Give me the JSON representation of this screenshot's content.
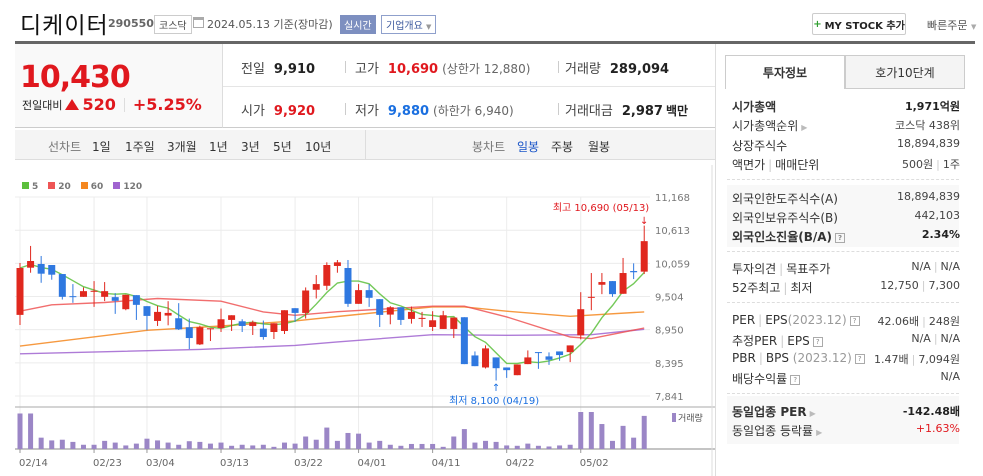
{
  "header": {
    "title": "디케이터",
    "code": "290550",
    "market": "코스닥",
    "date": "2024.05.13 기준(장마감)",
    "realtime": "실시간",
    "company_info": "기업개요",
    "mystock": "MY STOCK 추가",
    "quick_order": "빠른주문"
  },
  "price": {
    "current": "10,430",
    "change_label": "전일대비",
    "change": "520",
    "change_pct": "+5.25%"
  },
  "quote": {
    "prev_label": "전일",
    "prev": "9,910",
    "high_label": "고가",
    "high": "10,690",
    "upper_limit": "(상한가 12,880)",
    "volume_label": "거래량",
    "volume": "289,094",
    "open_label": "시가",
    "open": "9,920",
    "low_label": "저가",
    "low": "9,880",
    "lower_limit": "(하한가 6,940)",
    "amount_label": "거래대금",
    "amount": "2,987",
    "amount_unit": "백만"
  },
  "toolbar": {
    "line_label": "선차트",
    "periods": [
      "1일",
      "1주일",
      "3개월",
      "1년",
      "3년",
      "5년",
      "10년"
    ],
    "candle_label": "봉차트",
    "candle_types": [
      "일봉",
      "주봉",
      "월봉"
    ],
    "active_candle": "일봉"
  },
  "colors": {
    "up": "#e0281e",
    "down": "#2f78e0",
    "ma5": "#5cbf3c",
    "ma20": "#ee5555",
    "ma60": "#f5871f",
    "ma120": "#a064d0",
    "volume": "#9b86c6"
  },
  "chart_data": {
    "type": "candlestick",
    "legend": [
      "5",
      "20",
      "60",
      "120"
    ],
    "y_ticks": [
      11168,
      10613,
      10059,
      9504,
      8950,
      8395,
      7841
    ],
    "ylim": [
      7841,
      11168
    ],
    "x_tick_labels": [
      "02/14",
      "02/23",
      "03/04",
      "03/13",
      "03/22",
      "04/01",
      "04/11",
      "04/22",
      "05/02"
    ],
    "x_tick_index": [
      0,
      7,
      12,
      19,
      26,
      32,
      39,
      46,
      53
    ],
    "annotation_high": "최고 10,690 (05/13)",
    "annotation_low": "최저 8,100 (04/19)",
    "volume_label": "거래량",
    "ohlc": [
      [
        9197,
        10065,
        9029,
        9981
      ],
      [
        9986,
        10350,
        9902,
        10098
      ],
      [
        10048,
        10182,
        9734,
        9886
      ],
      [
        10031,
        10031,
        9785,
        9869
      ],
      [
        9880,
        9880,
        9454,
        9499
      ],
      [
        9510,
        9712,
        9399,
        9494
      ],
      [
        9499,
        9656,
        9499,
        9594
      ],
      [
        9583,
        9762,
        9331,
        9600
      ],
      [
        9499,
        9746,
        9427,
        9594
      ],
      [
        9494,
        9561,
        9214,
        9432
      ],
      [
        9292,
        9533,
        9275,
        9533
      ],
      [
        9527,
        9527,
        9113,
        9365
      ],
      [
        9343,
        9343,
        8939,
        9180
      ],
      [
        9096,
        9348,
        9012,
        9247
      ],
      [
        9186,
        9426,
        9023,
        9230
      ],
      [
        9141,
        9393,
        8945,
        8956
      ],
      [
        8990,
        9135,
        8626,
        8810
      ],
      [
        8704,
        9017,
        8693,
        8990
      ],
      [
        8962,
        8973,
        8760,
        8973
      ],
      [
        8978,
        9303,
        8911,
        9124
      ],
      [
        9113,
        9191,
        8928,
        9191
      ],
      [
        9090,
        9124,
        8911,
        9012
      ],
      [
        9012,
        9102,
        8861,
        9074
      ],
      [
        8967,
        9102,
        8782,
        8827
      ],
      [
        8911,
        9057,
        8794,
        9057
      ],
      [
        8928,
        9275,
        8878,
        9275
      ],
      [
        9309,
        9309,
        9080,
        9230
      ],
      [
        9230,
        9656,
        9135,
        9605
      ],
      [
        9617,
        9863,
        9471,
        9712
      ],
      [
        9684,
        10076,
        9611,
        10031
      ],
      [
        10015,
        10115,
        9902,
        10076
      ],
      [
        9981,
        10115,
        9331,
        9382
      ],
      [
        9382,
        9712,
        9382,
        9611
      ],
      [
        9611,
        9712,
        9331,
        9483
      ],
      [
        9460,
        9460,
        8995,
        9197
      ],
      [
        9202,
        9343,
        9040,
        9325
      ],
      [
        9325,
        9325,
        9029,
        9113
      ],
      [
        9130,
        9337,
        9051,
        9247
      ],
      [
        9130,
        9247,
        8995,
        9147
      ],
      [
        8995,
        9259,
        8928,
        9107
      ],
      [
        8962,
        9264,
        8962,
        9191
      ],
      [
        8962,
        9152,
        8810,
        9152
      ],
      [
        9158,
        9158,
        8374,
        8374
      ],
      [
        8519,
        8586,
        8340,
        8340
      ],
      [
        8318,
        8687,
        8301,
        8637
      ],
      [
        8486,
        8486,
        8100,
        8306
      ],
      [
        8318,
        8318,
        8144,
        8273
      ],
      [
        8189,
        8368,
        8189,
        8368
      ],
      [
        8374,
        8603,
        8374,
        8486
      ],
      [
        8575,
        8575,
        8295,
        8564
      ],
      [
        8503,
        8570,
        8362,
        8447
      ],
      [
        8586,
        8586,
        8430,
        8525
      ],
      [
        8575,
        8687,
        8408,
        8687
      ],
      [
        8855,
        9577,
        8788,
        9292
      ],
      [
        9488,
        9897,
        9275,
        9499
      ],
      [
        9701,
        9897,
        9544,
        9746
      ],
      [
        9762,
        9762,
        9499,
        9544
      ],
      [
        9550,
        10149,
        9550,
        9897
      ],
      [
        9930,
        10059,
        9796,
        9910
      ],
      [
        9920,
        10690,
        9880,
        10430
      ]
    ],
    "ma20": [
      [
        0,
        9258
      ],
      [
        3,
        9365
      ],
      [
        8,
        9404
      ],
      [
        13,
        9471
      ],
      [
        19,
        9426
      ],
      [
        23,
        9247
      ],
      [
        26,
        9191
      ],
      [
        30,
        9250
      ],
      [
        39,
        9342
      ],
      [
        42,
        9342
      ],
      [
        46,
        9163
      ],
      [
        52,
        8827
      ],
      [
        54,
        8800
      ],
      [
        59,
        8978
      ]
    ],
    "ma60": [
      [
        0,
        8676
      ],
      [
        12,
        8939
      ],
      [
        19,
        9012
      ],
      [
        26,
        9096
      ],
      [
        30,
        9170
      ],
      [
        39,
        9331
      ],
      [
        42,
        9331
      ],
      [
        46,
        9258
      ],
      [
        52,
        9174
      ],
      [
        59,
        9247
      ]
    ],
    "ma120": [
      [
        0,
        8547
      ],
      [
        17,
        8620
      ],
      [
        26,
        8687
      ],
      [
        30,
        8745
      ],
      [
        39,
        8866
      ],
      [
        46,
        8855
      ],
      [
        54,
        8866
      ],
      [
        59,
        8956
      ]
    ],
    "volume": [
      310000,
      310000,
      99000,
      75000,
      81000,
      62000,
      37000,
      37000,
      71000,
      56000,
      31000,
      47000,
      90000,
      75000,
      56000,
      37000,
      68000,
      62000,
      47000,
      56000,
      28000,
      37000,
      31000,
      37000,
      19000,
      56000,
      47000,
      109000,
      81000,
      187000,
      71000,
      140000,
      134000,
      56000,
      71000,
      37000,
      28000,
      44000,
      44000,
      44000,
      19000,
      109000,
      174000,
      56000,
      71000,
      62000,
      31000,
      28000,
      47000,
      28000,
      22000,
      31000,
      37000,
      323000,
      323000,
      218000,
      71000,
      202000,
      99000,
      289094
    ]
  },
  "info": {
    "tabs": [
      "투자정보",
      "호가10단계"
    ],
    "market_cap_label": "시가총액",
    "market_cap": "1,971억원",
    "rank_label": "시가총액순위",
    "rank": "코스닥 438위",
    "shares_label": "상장주식수",
    "shares": "18,894,839",
    "par_label": "액면가",
    "unit_label": "매매단위",
    "par": "500원",
    "unit": "1주",
    "foreign_limit_label": "외국인한도주식수(A)",
    "foreign_limit": "18,894,839",
    "foreign_hold_label": "외국인보유주식수(B)",
    "foreign_hold": "442,103",
    "foreign_ratio_label": "외국인소진율(B/A)",
    "foreign_ratio": "2.34%",
    "opinion_label": "투자의견",
    "target_label": "목표주가",
    "opinion": "N/A",
    "target": "N/A",
    "w52_label": "52주최고",
    "w52low_label": "최저",
    "w52high": "12,750",
    "w52low": "7,300",
    "per_label": "PER",
    "eps_label": "EPS",
    "per_period": "(2023.12)",
    "per": "42.06배",
    "eps": "248원",
    "est_label": "추정PER",
    "est_eps_label": "EPS",
    "est_per": "N/A",
    "est_eps": "N/A",
    "pbr_label": "PBR",
    "bps_label": "BPS",
    "pbr_period": "(2023.12)",
    "pbr": "1.47배",
    "bps": "7,094원",
    "div_label": "배당수익률",
    "div": "N/A",
    "ind_per_label": "동일업종 PER",
    "ind_per": "-142.48배",
    "ind_chg_label": "동일업종 등락률",
    "ind_chg": "+1.63%"
  }
}
